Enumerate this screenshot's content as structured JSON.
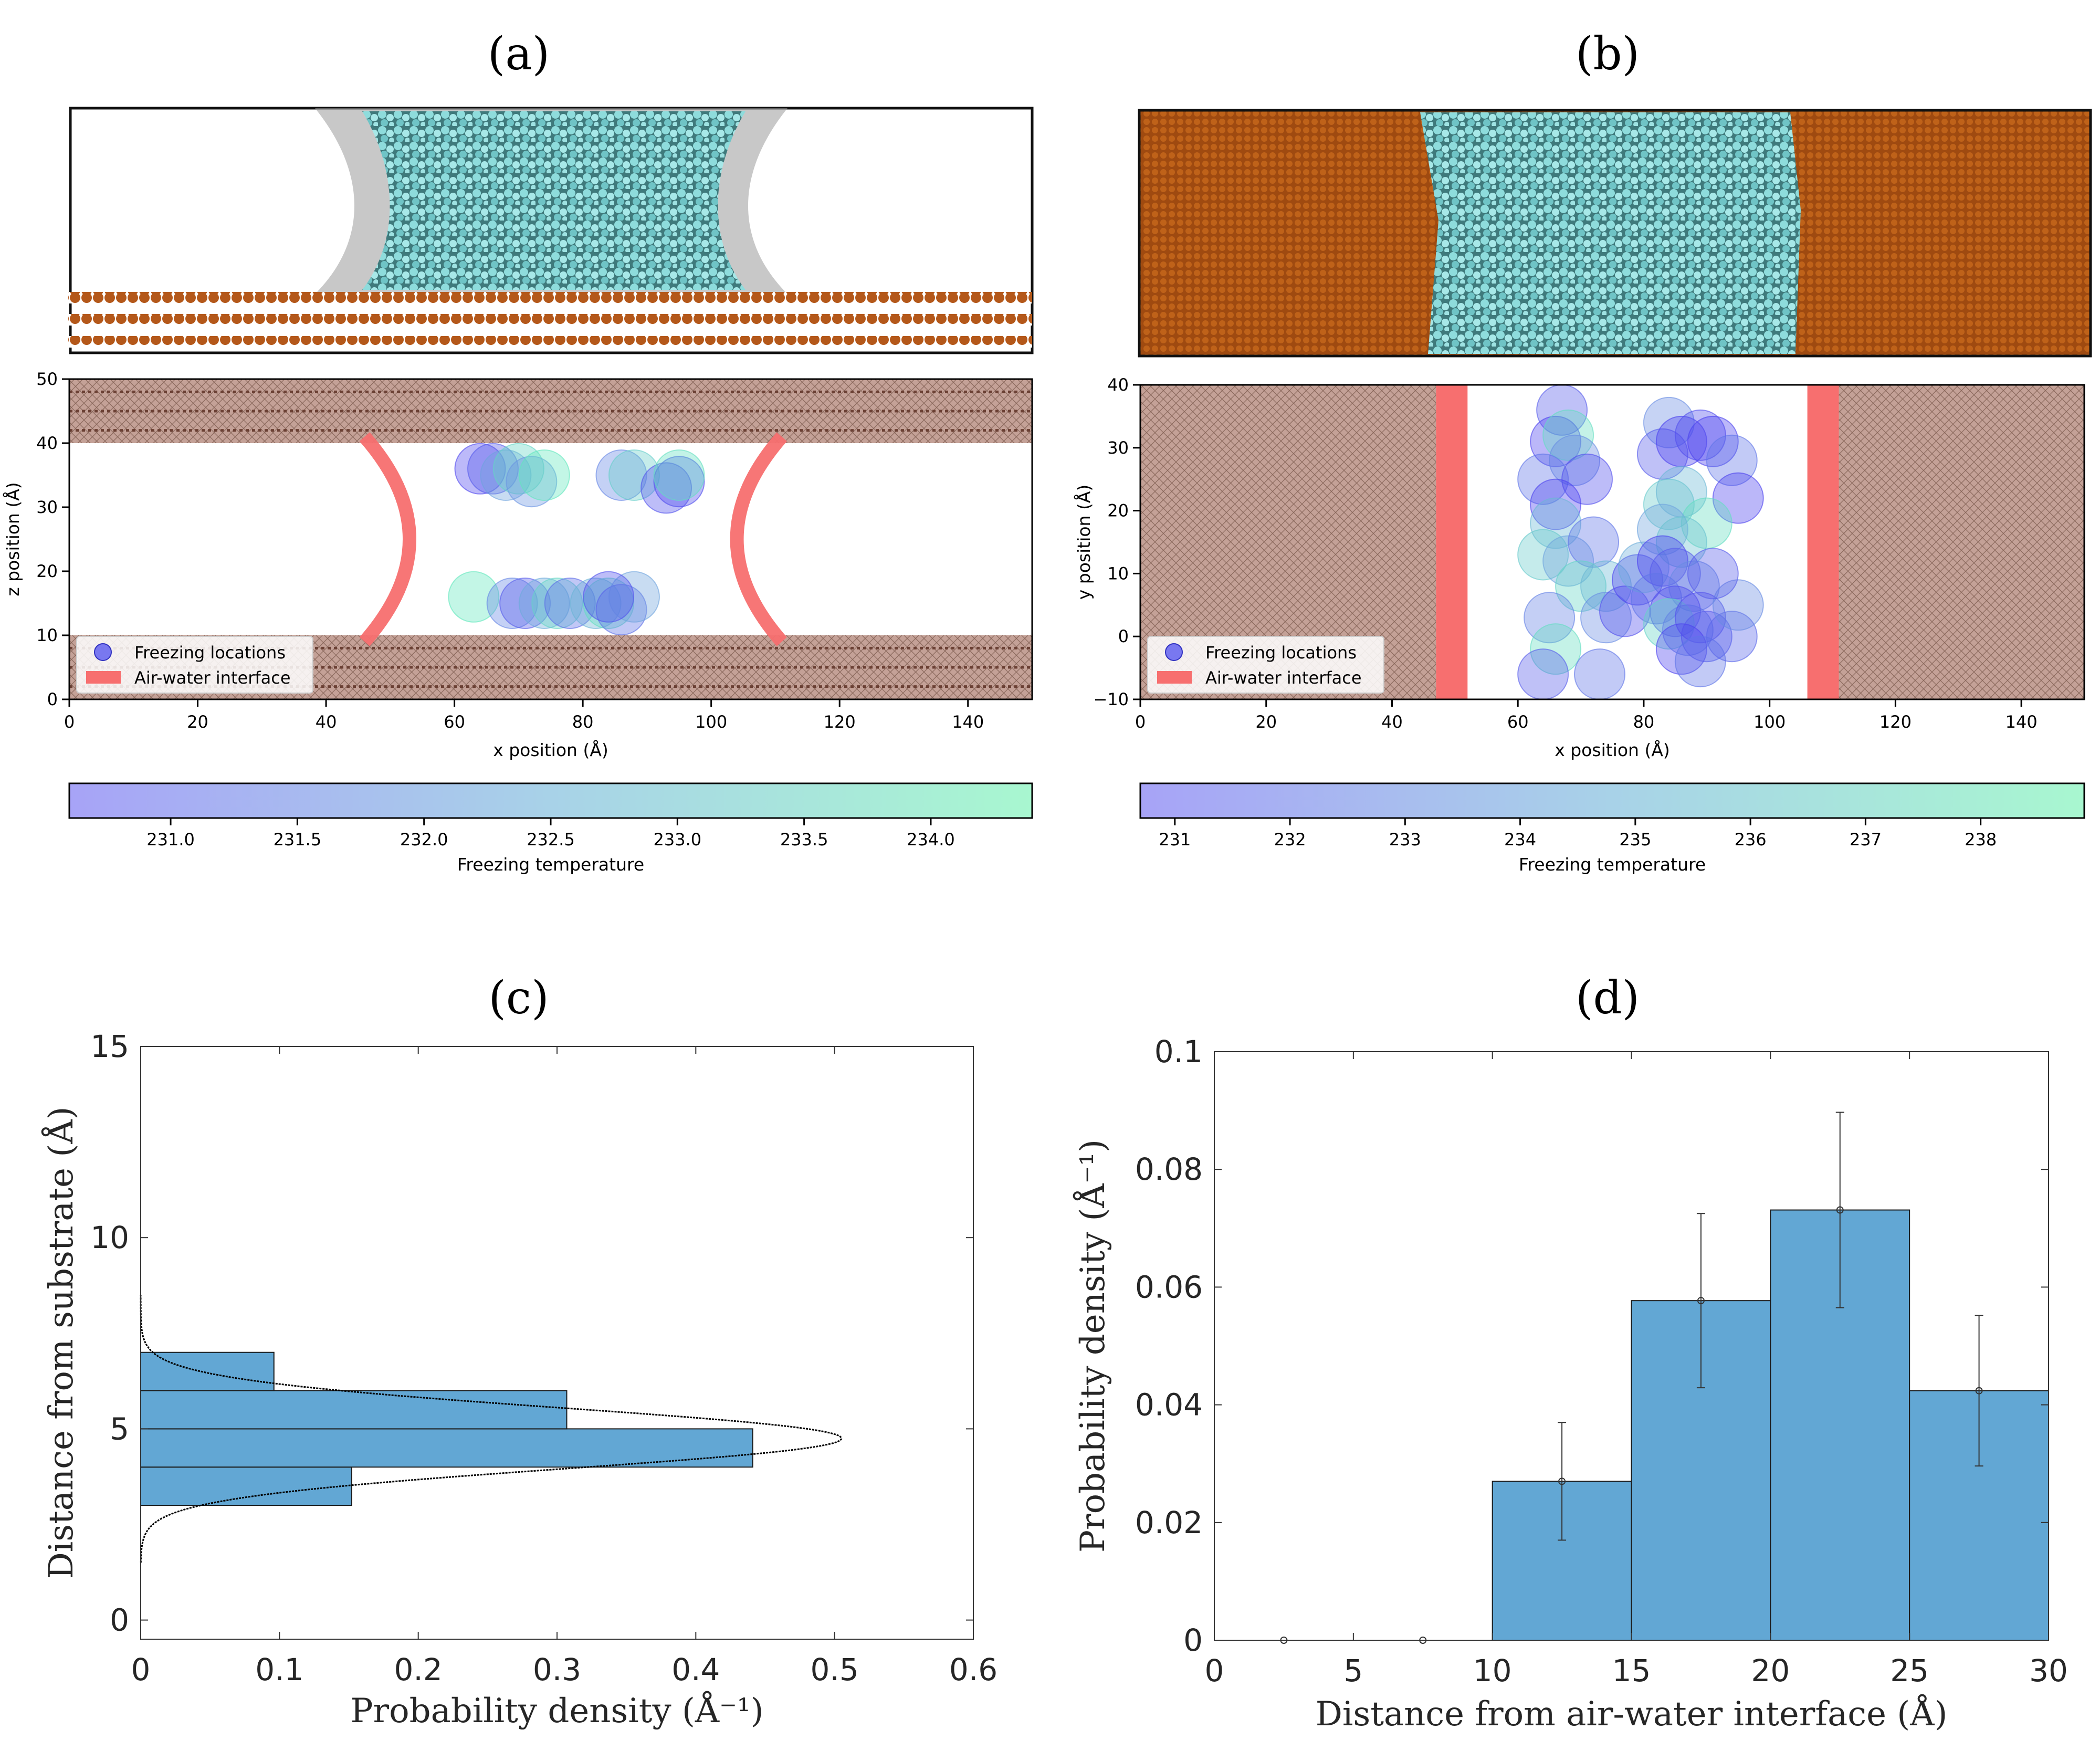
{
  "panels": {
    "a": {
      "label": "(a)"
    },
    "b": {
      "label": "(b)"
    },
    "c": {
      "label": "(c)"
    },
    "d": {
      "label": "(d)"
    }
  },
  "colors": {
    "substrate": "#b4581a",
    "substrate_band": "#c4a197",
    "water": "#7fd6d6",
    "interface": "#f76f6f",
    "bar": "#62a7d4",
    "cmap_low": "#a7a3f7",
    "cmap_high": "#a8f7d0"
  },
  "chart_data": [
    {
      "id": "a",
      "type": "scatter",
      "xlabel": "x position (Å)",
      "ylabel": "z position (Å)",
      "xlim": [
        0,
        150
      ],
      "ylim": [
        0,
        50
      ],
      "xticks": [
        "0",
        "20",
        "40",
        "60",
        "80",
        "100",
        "120",
        "140"
      ],
      "yticks": [
        "0",
        "10",
        "20",
        "30",
        "40",
        "50"
      ],
      "legend": [
        "Freezing locations",
        "Air-water interface"
      ],
      "legend_position": "lower-left",
      "substrate_bands": [
        [
          0,
          10
        ],
        [
          40,
          50
        ]
      ],
      "interfaces": [
        {
          "x_top": 46,
          "x_bottom": 46,
          "x_mid": 53
        },
        {
          "x_top": 111,
          "x_bottom": 111,
          "x_mid": 104
        }
      ],
      "points": [
        {
          "x": 64,
          "y": 36,
          "t": 230.8
        },
        {
          "x": 66,
          "y": 36,
          "t": 231.2
        },
        {
          "x": 68,
          "y": 35,
          "t": 232.6
        },
        {
          "x": 70,
          "y": 36,
          "t": 233.8
        },
        {
          "x": 72,
          "y": 34,
          "t": 232.3
        },
        {
          "x": 74,
          "y": 35,
          "t": 234.2
        },
        {
          "x": 86,
          "y": 35,
          "t": 232.0
        },
        {
          "x": 88,
          "y": 35,
          "t": 233.6
        },
        {
          "x": 93,
          "y": 33,
          "t": 231.0
        },
        {
          "x": 95,
          "y": 34,
          "t": 230.9
        },
        {
          "x": 95,
          "y": 35,
          "t": 234.0
        },
        {
          "x": 63,
          "y": 16,
          "t": 234.2
        },
        {
          "x": 69,
          "y": 15,
          "t": 232.0
        },
        {
          "x": 71,
          "y": 15,
          "t": 231.2
        },
        {
          "x": 74,
          "y": 15,
          "t": 232.8
        },
        {
          "x": 76,
          "y": 15,
          "t": 233.8
        },
        {
          "x": 78,
          "y": 15,
          "t": 231.5
        },
        {
          "x": 82,
          "y": 15,
          "t": 233.0
        },
        {
          "x": 84,
          "y": 15,
          "t": 234.0
        },
        {
          "x": 86,
          "y": 14,
          "t": 231.6
        },
        {
          "x": 88,
          "y": 16,
          "t": 232.6
        },
        {
          "x": 84,
          "y": 16,
          "t": 231.0
        }
      ],
      "colorbar": {
        "label": "Freezing temperature",
        "min": 230.6,
        "max": 234.4,
        "ticks": [
          "231.0",
          "231.5",
          "232.0",
          "232.5",
          "233.0",
          "233.5",
          "234.0"
        ]
      }
    },
    {
      "id": "b",
      "type": "scatter",
      "xlabel": "x position (Å)",
      "ylabel": "y position (Å)",
      "xlim": [
        0,
        150
      ],
      "ylim": [
        -10,
        40
      ],
      "xticks": [
        "0",
        "20",
        "40",
        "60",
        "80",
        "100",
        "120",
        "140"
      ],
      "yticks": [
        "−10",
        "0",
        "10",
        "20",
        "30",
        "40"
      ],
      "legend": [
        "Freezing locations",
        "Air-water interface"
      ],
      "legend_position": "lower-left",
      "substrate_bands": [
        [
          0,
          47
        ],
        [
          111,
          150
        ]
      ],
      "interfaces": [
        [
          47,
          52
        ],
        [
          106,
          111
        ]
      ],
      "points": [
        {
          "x": 67,
          "y": 36,
          "t": 232.0
        },
        {
          "x": 66,
          "y": 31,
          "t": 231.0
        },
        {
          "x": 68,
          "y": 32,
          "t": 238.0
        },
        {
          "x": 69,
          "y": 28,
          "t": 234.0
        },
        {
          "x": 64,
          "y": 25,
          "t": 233.0
        },
        {
          "x": 71,
          "y": 25,
          "t": 231.5
        },
        {
          "x": 66,
          "y": 21,
          "t": 231.0
        },
        {
          "x": 66,
          "y": 18,
          "t": 236.0
        },
        {
          "x": 64,
          "y": 13,
          "t": 237.0
        },
        {
          "x": 68,
          "y": 12,
          "t": 235.0
        },
        {
          "x": 72,
          "y": 15,
          "t": 233.0
        },
        {
          "x": 70,
          "y": 8,
          "t": 237.5
        },
        {
          "x": 74,
          "y": 8,
          "t": 236.0
        },
        {
          "x": 65,
          "y": 3,
          "t": 233.5
        },
        {
          "x": 66,
          "y": -2,
          "t": 238.0
        },
        {
          "x": 64,
          "y": -6,
          "t": 232.0
        },
        {
          "x": 73,
          "y": -6,
          "t": 233.0
        },
        {
          "x": 74,
          "y": 3,
          "t": 234.0
        },
        {
          "x": 77,
          "y": 4,
          "t": 231.5
        },
        {
          "x": 79,
          "y": 9,
          "t": 231.0
        },
        {
          "x": 80,
          "y": 11,
          "t": 235.5
        },
        {
          "x": 84,
          "y": 34,
          "t": 234.0
        },
        {
          "x": 83,
          "y": 29,
          "t": 232.0
        },
        {
          "x": 86,
          "y": 31,
          "t": 231.0
        },
        {
          "x": 89,
          "y": 32,
          "t": 231.5
        },
        {
          "x": 91,
          "y": 31,
          "t": 231.0
        },
        {
          "x": 94,
          "y": 28,
          "t": 233.0
        },
        {
          "x": 95,
          "y": 22,
          "t": 231.0
        },
        {
          "x": 84,
          "y": 21,
          "t": 237.0
        },
        {
          "x": 86,
          "y": 23,
          "t": 236.0
        },
        {
          "x": 90,
          "y": 18,
          "t": 238.0
        },
        {
          "x": 83,
          "y": 17,
          "t": 235.0
        },
        {
          "x": 86,
          "y": 15,
          "t": 236.5
        },
        {
          "x": 83,
          "y": 12,
          "t": 231.0
        },
        {
          "x": 85,
          "y": 10,
          "t": 232.0
        },
        {
          "x": 88,
          "y": 8,
          "t": 234.0
        },
        {
          "x": 82,
          "y": 6,
          "t": 233.0
        },
        {
          "x": 85,
          "y": 4,
          "t": 231.5
        },
        {
          "x": 84,
          "y": 2,
          "t": 237.5
        },
        {
          "x": 87,
          "y": 1,
          "t": 233.5
        },
        {
          "x": 89,
          "y": 3,
          "t": 231.5
        },
        {
          "x": 90,
          "y": 0,
          "t": 232.0
        },
        {
          "x": 86,
          "y": -2,
          "t": 231.0
        },
        {
          "x": 89,
          "y": -4,
          "t": 233.0
        },
        {
          "x": 94,
          "y": 0,
          "t": 232.5
        },
        {
          "x": 95,
          "y": 5,
          "t": 234.0
        },
        {
          "x": 91,
          "y": 10,
          "t": 232.0
        }
      ],
      "colorbar": {
        "label": "Freezing temperature",
        "min": 230.7,
        "max": 238.9,
        "ticks": [
          "231",
          "232",
          "233",
          "234",
          "235",
          "236",
          "237",
          "238"
        ]
      }
    },
    {
      "id": "c",
      "type": "bar",
      "orientation": "horizontal",
      "xlabel": "Probability density (Å⁻¹)",
      "ylabel": "Distance from substrate (Å)",
      "xlim": [
        0,
        0.6
      ],
      "ylim": [
        -0.5,
        15
      ],
      "xticks": [
        "0",
        "0.1",
        "0.2",
        "0.3",
        "0.4",
        "0.5",
        "0.6"
      ],
      "yticks": [
        "0",
        "5",
        "10",
        "15"
      ],
      "bins": [
        {
          "from": 3,
          "to": 4,
          "value": 0.152
        },
        {
          "from": 4,
          "to": 5,
          "value": 0.441
        },
        {
          "from": 5,
          "to": 6,
          "value": 0.307
        },
        {
          "from": 6,
          "to": 7,
          "value": 0.096
        }
      ],
      "fit": {
        "type": "gaussian",
        "mean": 4.75,
        "sigma": 0.79,
        "peak": 0.505
      }
    },
    {
      "id": "d",
      "type": "bar",
      "xlabel": "Distance from air-water interface (Å)",
      "ylabel": "Probability density (Å⁻¹)",
      "xlim": [
        0,
        30
      ],
      "ylim": [
        0,
        0.1
      ],
      "xticks": [
        "0",
        "5",
        "10",
        "15",
        "20",
        "25",
        "30"
      ],
      "yticks": [
        "0",
        "0.02",
        "0.04",
        "0.06",
        "0.08",
        "0.1"
      ],
      "bins": [
        {
          "from": 0,
          "to": 5,
          "value": 0,
          "err": 0
        },
        {
          "from": 5,
          "to": 10,
          "value": 0,
          "err": 0
        },
        {
          "from": 10,
          "to": 15,
          "value": 0.027,
          "err": 0.01
        },
        {
          "from": 15,
          "to": 20,
          "value": 0.0577,
          "err": 0.0148
        },
        {
          "from": 20,
          "to": 25,
          "value": 0.0731,
          "err": 0.0166
        },
        {
          "from": 25,
          "to": 30,
          "value": 0.0424,
          "err": 0.0128
        }
      ]
    }
  ]
}
